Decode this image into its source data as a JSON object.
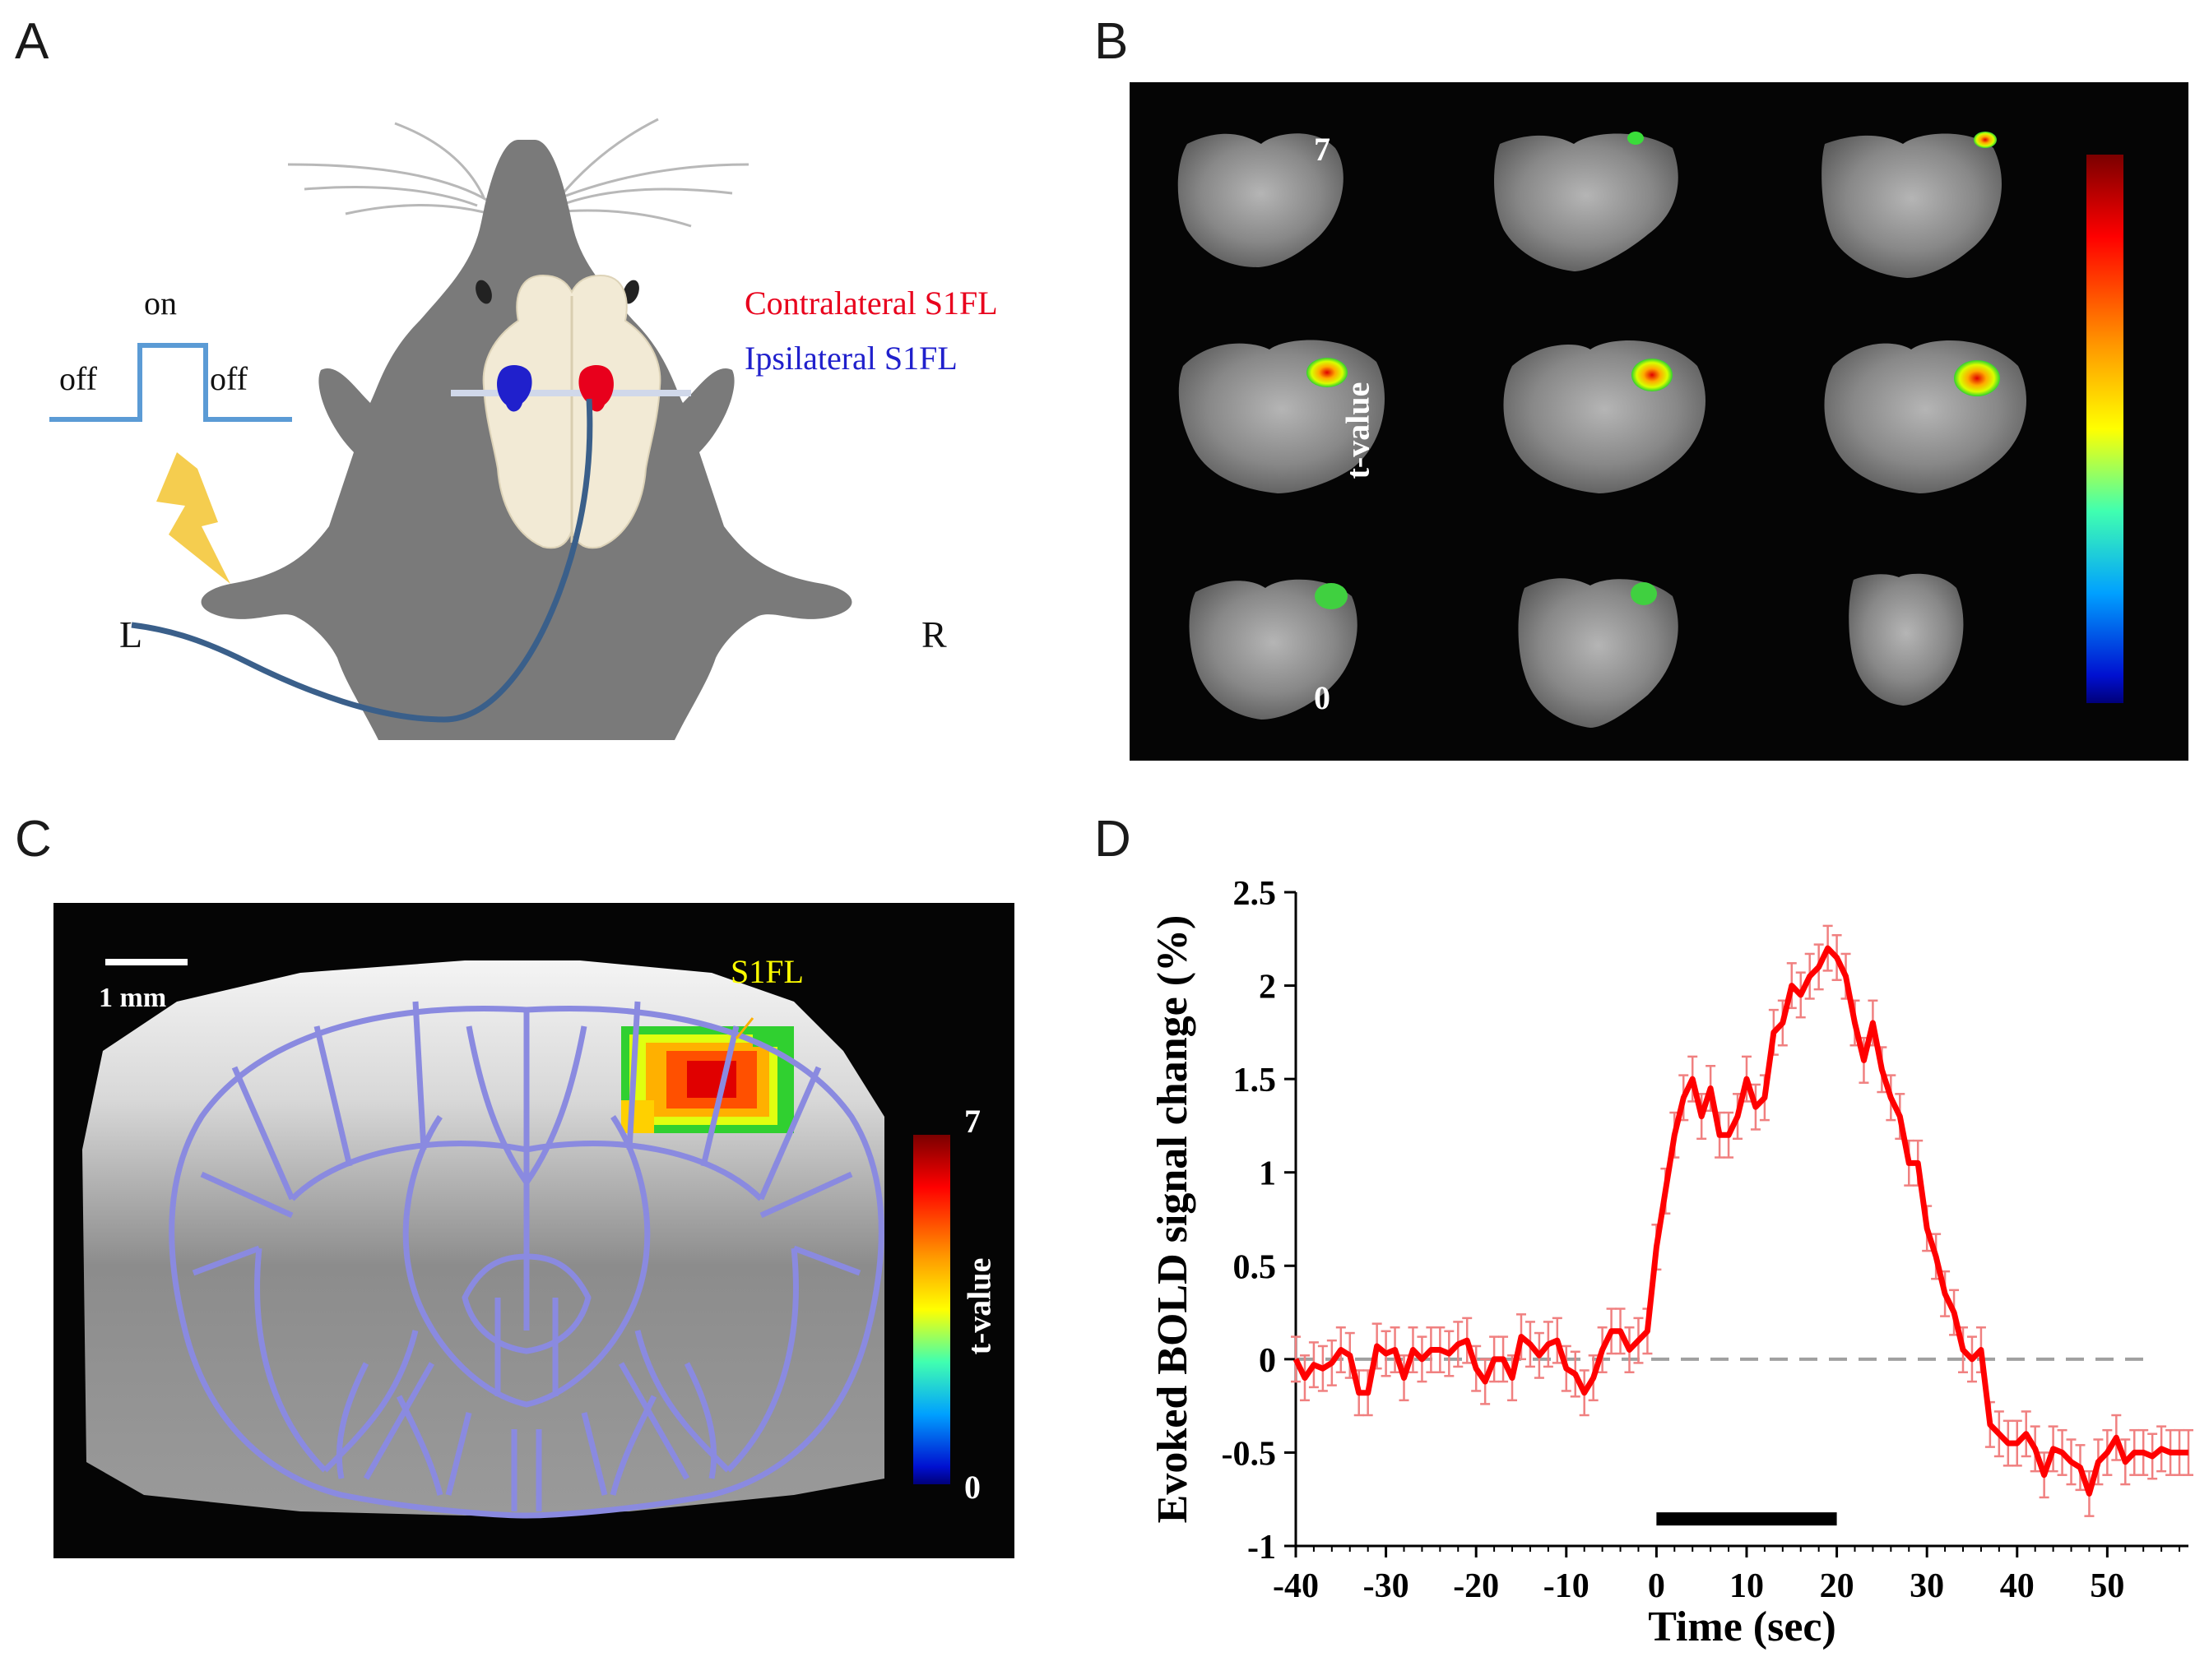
{
  "panels": {
    "a": {
      "label": "A",
      "stim_on": "on",
      "stim_off_left": "off",
      "stim_off_right": "off",
      "contralateral": "Contralateral S1FL",
      "ipsilateral": "Ipsilateral S1FL",
      "side_left": "L",
      "side_right": "R"
    },
    "b": {
      "label": "B",
      "colorbar_max": "7",
      "colorbar_min": "0",
      "colorbar_title": "t-value"
    },
    "c": {
      "label": "C",
      "scalebar": "1 mm",
      "region": "S1FL",
      "colorbar_max": "7",
      "colorbar_min": "0",
      "colorbar_title": "t-value"
    },
    "d": {
      "label": "D"
    }
  },
  "colors": {
    "contralateral": "#e8001c",
    "ipsilateral": "#2020cc",
    "stim_trace": "#5b9bd5",
    "trace": "#ff0000",
    "error_bars": "#f08080",
    "atlas_outline": "#8a8ae0",
    "s1fl_label": "#ffff00"
  },
  "chart_data": {
    "type": "line",
    "title": "",
    "xlabel": "Time (sec)",
    "ylabel": "Evoked BOLD signal change (%)",
    "xlim": [
      -40,
      59
    ],
    "ylim": [
      -1,
      2.5
    ],
    "xticks": [
      "-40",
      "-30",
      "-20",
      "-10",
      "0",
      "10",
      "20",
      "30",
      "40",
      "50"
    ],
    "yticks": [
      "2.5",
      "2",
      "1.5",
      "1",
      "0.5",
      "0",
      "-0.5",
      "-1"
    ],
    "baseline": 0,
    "stimulus_interval": [
      0,
      20
    ],
    "series": [
      {
        "x": [
          -40,
          -39,
          -38,
          -37,
          -36,
          -35,
          -34,
          -33,
          -32,
          -31,
          -30,
          -29,
          -28,
          -27,
          -26,
          -25,
          -24,
          -23,
          -22,
          -21,
          -20,
          -19,
          -18,
          -17,
          -16,
          -15,
          -14,
          -13,
          -12,
          -11,
          -10,
          -9,
          -8,
          -7,
          -6,
          -5,
          -4,
          -3,
          -2,
          -1,
          0,
          1,
          2,
          3,
          4,
          5,
          6,
          7,
          8,
          9,
          10,
          11,
          12,
          13,
          14,
          15,
          16,
          17,
          18,
          19,
          20,
          21,
          22,
          23,
          24,
          25,
          26,
          27,
          28,
          29,
          30,
          31,
          32,
          33,
          34,
          35,
          36,
          37,
          38,
          39,
          40,
          41,
          42,
          43,
          44,
          45,
          46,
          47,
          48,
          49,
          50,
          51,
          52,
          53,
          54,
          55,
          56,
          57,
          58,
          59
        ],
        "y": [
          0.0,
          -0.1,
          -0.03,
          -0.05,
          -0.02,
          0.05,
          0.02,
          -0.18,
          -0.18,
          0.07,
          0.03,
          0.05,
          -0.1,
          0.05,
          0.0,
          0.05,
          0.05,
          0.03,
          0.08,
          0.1,
          -0.05,
          -0.12,
          0.0,
          0.0,
          -0.1,
          0.12,
          0.08,
          0.02,
          0.08,
          0.1,
          -0.05,
          -0.08,
          -0.18,
          -0.1,
          0.05,
          0.15,
          0.15,
          0.05,
          0.1,
          0.15,
          0.6,
          0.9,
          1.2,
          1.4,
          1.5,
          1.3,
          1.45,
          1.2,
          1.2,
          1.3,
          1.5,
          1.35,
          1.4,
          1.75,
          1.8,
          2.0,
          1.95,
          2.05,
          2.1,
          2.2,
          2.15,
          2.05,
          1.8,
          1.6,
          1.8,
          1.55,
          1.4,
          1.3,
          1.05,
          1.05,
          0.7,
          0.55,
          0.35,
          0.25,
          0.05,
          0.0,
          0.05,
          -0.35,
          -0.4,
          -0.45,
          -0.45,
          -0.4,
          -0.48,
          -0.62,
          -0.48,
          -0.5,
          -0.55,
          -0.58,
          -0.72,
          -0.55,
          -0.5,
          -0.42,
          -0.55,
          -0.5,
          -0.5,
          -0.52,
          -0.48,
          -0.5,
          -0.5,
          -0.5
        ],
        "error": 0.12
      }
    ]
  }
}
